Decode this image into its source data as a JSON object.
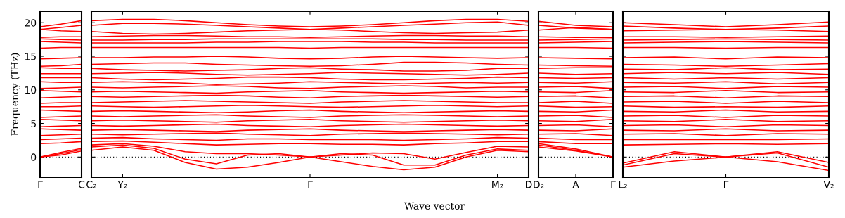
{
  "chart_data": [
    {
      "type": "line",
      "ylabel": "Frequency (THz)",
      "categories": [
        "Γ",
        null,
        "C"
      ],
      "ylim": [
        -3,
        21.7
      ],
      "yticks": [
        0,
        5,
        10,
        15,
        20
      ],
      "ref_lines": [
        {
          "axis": "y",
          "value": 0,
          "color": "#000000",
          "line_style": "dotted"
        }
      ],
      "series": [
        {
          "color": "#ff0000",
          "values": [
            19.4,
            19.8,
            20.3
          ]
        },
        {
          "color": "#ff0000",
          "values": [
            19.0,
            19.3,
            19.6
          ]
        },
        {
          "color": "#ff0000",
          "values": [
            19.0,
            18.8,
            18.7
          ]
        },
        {
          "color": "#ff0000",
          "values": [
            17.8,
            17.9,
            17.9
          ]
        },
        {
          "color": "#ff0000",
          "values": [
            17.6,
            17.5,
            17.4
          ]
        },
        {
          "color": "#ff0000",
          "values": [
            17.2,
            17.1,
            17.0
          ]
        },
        {
          "color": "#ff0000",
          "values": [
            16.2,
            16.3,
            16.3
          ]
        },
        {
          "color": "#ff0000",
          "values": [
            14.6,
            14.7,
            14.8
          ]
        },
        {
          "color": "#ff0000",
          "values": [
            13.5,
            13.6,
            13.8
          ]
        },
        {
          "color": "#ff0000",
          "values": [
            13.3,
            13.2,
            13.2
          ]
        },
        {
          "color": "#ff0000",
          "values": [
            12.4,
            12.4,
            12.4
          ]
        },
        {
          "color": "#ff0000",
          "values": [
            11.8,
            11.8,
            11.8
          ]
        },
        {
          "color": "#ff0000",
          "values": [
            11.2,
            11.1,
            11.1
          ]
        },
        {
          "color": "#ff0000",
          "values": [
            10.2,
            10.3,
            10.4
          ]
        },
        {
          "color": "#ff0000",
          "values": [
            9.9,
            9.8,
            9.7
          ]
        },
        {
          "color": "#ff0000",
          "values": [
            8.8,
            8.9,
            9.0
          ]
        },
        {
          "color": "#ff0000",
          "values": [
            8.0,
            8.1,
            8.1
          ]
        },
        {
          "color": "#ff0000",
          "values": [
            7.5,
            7.5,
            7.6
          ]
        },
        {
          "color": "#ff0000",
          "values": [
            7.0,
            6.9,
            6.8
          ]
        },
        {
          "color": "#ff0000",
          "values": [
            5.9,
            6.0,
            6.1
          ]
        },
        {
          "color": "#ff0000",
          "values": [
            5.6,
            5.5,
            5.4
          ]
        },
        {
          "color": "#ff0000",
          "values": [
            4.5,
            4.6,
            4.7
          ]
        },
        {
          "color": "#ff0000",
          "values": [
            4.2,
            4.1,
            4.0
          ]
        },
        {
          "color": "#ff0000",
          "values": [
            3.2,
            3.3,
            3.4
          ]
        },
        {
          "color": "#ff0000",
          "values": [
            2.6,
            2.7,
            2.8
          ]
        },
        {
          "color": "#ff0000",
          "values": [
            2.0,
            2.1,
            2.3
          ]
        },
        {
          "color": "#ff0000",
          "values": [
            0,
            0.7,
            1.3
          ]
        },
        {
          "color": "#ff0000",
          "values": [
            0,
            0.5,
            1.1
          ]
        },
        {
          "color": "#ff0000",
          "values": [
            0,
            0.3,
            0.9
          ]
        }
      ]
    },
    {
      "type": "line",
      "xlabel": "Wave vector",
      "tick_labels": "x",
      "categories": [
        "C₂",
        "Y₂",
        null,
        null,
        null,
        null,
        null,
        "Γ",
        null,
        null,
        null,
        null,
        null,
        "M₂",
        "D"
      ],
      "ylim": [
        -3,
        21.7
      ],
      "yticks": [
        0,
        5,
        10,
        15,
        20
      ],
      "ref_lines": [
        {
          "axis": "y",
          "value": 0,
          "color": "#000000",
          "line_style": "dotted"
        }
      ],
      "series": [
        {
          "color": "#ff0000",
          "values": [
            20.3,
            20.5,
            20.5,
            20.3,
            20.0,
            19.7,
            19.5,
            19.4,
            19.5,
            19.7,
            20.0,
            20.3,
            20.5,
            20.5,
            20.2
          ]
        },
        {
          "color": "#ff0000",
          "values": [
            19.6,
            19.9,
            19.9,
            19.8,
            19.6,
            19.4,
            19.2,
            19.0,
            19.2,
            19.4,
            19.6,
            19.8,
            20.0,
            20.1,
            19.6
          ]
        },
        {
          "color": "#ff0000",
          "values": [
            18.7,
            18.4,
            18.3,
            18.4,
            18.6,
            18.8,
            18.9,
            19.0,
            18.9,
            18.7,
            18.5,
            18.4,
            18.5,
            18.6,
            18.9
          ]
        },
        {
          "color": "#ff0000",
          "values": [
            17.9,
            18.0,
            18.1,
            18.1,
            18.0,
            17.9,
            17.9,
            17.8,
            17.9,
            18.0,
            18.1,
            18.1,
            18.0,
            18.0,
            17.9
          ]
        },
        {
          "color": "#ff0000",
          "values": [
            17.4,
            17.4,
            17.5,
            17.5,
            17.6,
            17.6,
            17.6,
            17.6,
            17.6,
            17.6,
            17.5,
            17.5,
            17.4,
            17.4,
            17.4
          ]
        },
        {
          "color": "#ff0000",
          "values": [
            17.0,
            17.0,
            17.0,
            17.0,
            17.1,
            17.1,
            17.2,
            17.2,
            17.2,
            17.1,
            17.1,
            17.0,
            17.0,
            17.0,
            17.0
          ]
        },
        {
          "color": "#ff0000",
          "values": [
            16.3,
            16.3,
            16.3,
            16.3,
            16.3,
            16.3,
            16.3,
            16.2,
            16.3,
            16.3,
            16.3,
            16.3,
            16.3,
            16.3,
            16.3
          ]
        },
        {
          "color": "#ff0000",
          "values": [
            14.8,
            14.8,
            14.9,
            14.9,
            15.0,
            14.9,
            14.7,
            14.6,
            14.7,
            14.9,
            15.0,
            14.9,
            14.8,
            14.7,
            14.8
          ]
        },
        {
          "color": "#ff0000",
          "values": [
            13.8,
            13.9,
            14.0,
            14.0,
            13.8,
            13.7,
            13.6,
            13.5,
            13.6,
            13.8,
            14.1,
            14.1,
            14.0,
            13.8,
            13.7
          ]
        },
        {
          "color": "#ff0000",
          "values": [
            13.2,
            13.0,
            12.9,
            12.8,
            12.9,
            13.0,
            13.2,
            13.3,
            13.1,
            13.0,
            12.8,
            12.8,
            12.9,
            13.2,
            13.2
          ]
        },
        {
          "color": "#ff0000",
          "values": [
            12.4,
            12.5,
            12.6,
            12.5,
            12.3,
            12.2,
            12.3,
            12.4,
            12.6,
            12.5,
            12.4,
            12.3,
            12.2,
            12.3,
            12.5
          ]
        },
        {
          "color": "#ff0000",
          "values": [
            11.8,
            11.6,
            11.5,
            11.6,
            11.7,
            11.9,
            11.9,
            11.8,
            11.6,
            11.5,
            11.5,
            11.6,
            11.7,
            11.9,
            11.8
          ]
        },
        {
          "color": "#ff0000",
          "values": [
            11.1,
            11.2,
            11.1,
            11.0,
            10.8,
            10.9,
            11.0,
            11.2,
            11.1,
            11.0,
            10.9,
            11.0,
            11.1,
            11.0,
            11.1
          ]
        },
        {
          "color": "#ff0000",
          "values": [
            10.4,
            10.3,
            10.4,
            10.5,
            10.6,
            10.5,
            10.3,
            10.2,
            10.4,
            10.5,
            10.6,
            10.5,
            10.3,
            10.4,
            10.4
          ]
        },
        {
          "color": "#ff0000",
          "values": [
            9.7,
            9.8,
            9.7,
            9.6,
            9.5,
            9.7,
            9.8,
            9.9,
            9.7,
            9.6,
            9.5,
            9.6,
            9.7,
            9.8,
            9.7
          ]
        },
        {
          "color": "#ff0000",
          "values": [
            9.0,
            8.9,
            9.0,
            9.1,
            9.2,
            9.1,
            8.9,
            8.8,
            9.0,
            9.1,
            9.2,
            9.1,
            9.0,
            8.9,
            9.0
          ]
        },
        {
          "color": "#ff0000",
          "values": [
            8.1,
            8.2,
            8.3,
            8.4,
            8.3,
            8.2,
            8.1,
            8.0,
            8.2,
            8.3,
            8.4,
            8.3,
            8.2,
            8.1,
            8.1
          ]
        },
        {
          "color": "#ff0000",
          "values": [
            7.6,
            7.5,
            7.4,
            7.5,
            7.6,
            7.7,
            7.6,
            7.5,
            7.4,
            7.5,
            7.6,
            7.7,
            7.6,
            7.5,
            7.6
          ]
        },
        {
          "color": "#ff0000",
          "values": [
            6.8,
            6.9,
            6.8,
            6.7,
            6.6,
            6.7,
            6.9,
            7.0,
            6.8,
            6.7,
            6.6,
            6.7,
            6.8,
            6.9,
            6.8
          ]
        },
        {
          "color": "#ff0000",
          "values": [
            6.1,
            6.0,
            6.1,
            6.2,
            6.3,
            6.1,
            6.0,
            5.9,
            6.1,
            6.2,
            6.3,
            6.2,
            6.1,
            6.0,
            6.1
          ]
        },
        {
          "color": "#ff0000",
          "values": [
            5.4,
            5.5,
            5.4,
            5.3,
            5.2,
            5.4,
            5.5,
            5.6,
            5.4,
            5.3,
            5.2,
            5.3,
            5.4,
            5.5,
            5.4
          ]
        },
        {
          "color": "#ff0000",
          "values": [
            4.7,
            4.6,
            4.7,
            4.8,
            4.9,
            4.7,
            4.6,
            4.5,
            4.7,
            4.8,
            4.9,
            4.8,
            4.7,
            4.6,
            4.7
          ]
        },
        {
          "color": "#ff0000",
          "values": [
            4.0,
            4.1,
            4.0,
            3.9,
            3.8,
            4.0,
            4.1,
            4.2,
            4.0,
            3.9,
            3.8,
            3.9,
            4.0,
            4.1,
            4.0
          ]
        },
        {
          "color": "#ff0000",
          "values": [
            3.4,
            3.3,
            3.4,
            3.5,
            3.6,
            3.4,
            3.3,
            3.2,
            3.4,
            3.5,
            3.6,
            3.5,
            3.4,
            3.3,
            3.4
          ]
        },
        {
          "color": "#ff0000",
          "values": [
            2.8,
            2.9,
            2.7,
            2.6,
            2.5,
            2.7,
            2.7,
            2.6,
            2.6,
            2.6,
            2.5,
            2.6,
            2.7,
            2.9,
            2.8
          ]
        },
        {
          "color": "#ff0000",
          "values": [
            2.3,
            2.4,
            2.2,
            2.0,
            1.8,
            1.9,
            2.0,
            2.0,
            1.9,
            1.9,
            1.8,
            2.0,
            2.1,
            2.3,
            2.3
          ]
        },
        {
          "color": "#ff0000",
          "values": [
            1.0,
            1.5,
            1.0,
            -0.8,
            -1.8,
            -1.5,
            -0.8,
            0,
            -0.7,
            -1.4,
            -1.9,
            -1.5,
            0.0,
            1.0,
            0.8
          ]
        },
        {
          "color": "#ff0000",
          "values": [
            1.5,
            1.8,
            1.3,
            -0.3,
            -1.0,
            0.3,
            0.5,
            0,
            0.5,
            0.3,
            -1.2,
            -1.2,
            0.3,
            1.2,
            1.0
          ]
        },
        {
          "color": "#ff0000",
          "values": [
            1.8,
            2.0,
            1.6,
            0.8,
            0.5,
            0.5,
            0.3,
            0,
            0.3,
            0.6,
            0.5,
            -0.3,
            0.7,
            1.6,
            1.5
          ]
        }
      ]
    },
    {
      "type": "line",
      "tick_labels": "x",
      "categories": [
        "D₂",
        "A",
        "Γ"
      ],
      "ylim": [
        -3,
        21.7
      ],
      "yticks": [
        0,
        5,
        10,
        15,
        20
      ],
      "ref_lines": [
        {
          "axis": "y",
          "value": 0,
          "color": "#000000",
          "line_style": "dotted"
        }
      ],
      "series": [
        {
          "color": "#ff0000",
          "values": [
            20.2,
            19.6,
            19.4
          ]
        },
        {
          "color": "#ff0000",
          "values": [
            19.6,
            19.2,
            19.0
          ]
        },
        {
          "color": "#ff0000",
          "values": [
            18.9,
            19.3,
            19.0
          ]
        },
        {
          "color": "#ff0000",
          "values": [
            17.9,
            17.8,
            17.8
          ]
        },
        {
          "color": "#ff0000",
          "values": [
            17.4,
            17.5,
            17.6
          ]
        },
        {
          "color": "#ff0000",
          "values": [
            17.0,
            17.1,
            17.2
          ]
        },
        {
          "color": "#ff0000",
          "values": [
            16.3,
            16.3,
            16.2
          ]
        },
        {
          "color": "#ff0000",
          "values": [
            14.8,
            14.7,
            14.6
          ]
        },
        {
          "color": "#ff0000",
          "values": [
            13.7,
            13.6,
            13.5
          ]
        },
        {
          "color": "#ff0000",
          "values": [
            13.2,
            13.3,
            13.3
          ]
        },
        {
          "color": "#ff0000",
          "values": [
            12.5,
            12.3,
            12.4
          ]
        },
        {
          "color": "#ff0000",
          "values": [
            11.8,
            11.7,
            11.8
          ]
        },
        {
          "color": "#ff0000",
          "values": [
            11.1,
            11.0,
            11.2
          ]
        },
        {
          "color": "#ff0000",
          "values": [
            10.4,
            10.5,
            10.2
          ]
        },
        {
          "color": "#ff0000",
          "values": [
            9.7,
            9.6,
            9.9
          ]
        },
        {
          "color": "#ff0000",
          "values": [
            9.0,
            9.1,
            8.8
          ]
        },
        {
          "color": "#ff0000",
          "values": [
            8.1,
            8.3,
            8.0
          ]
        },
        {
          "color": "#ff0000",
          "values": [
            7.6,
            7.4,
            7.5
          ]
        },
        {
          "color": "#ff0000",
          "values": [
            6.8,
            6.7,
            7.0
          ]
        },
        {
          "color": "#ff0000",
          "values": [
            6.1,
            6.2,
            5.9
          ]
        },
        {
          "color": "#ff0000",
          "values": [
            5.4,
            5.3,
            5.6
          ]
        },
        {
          "color": "#ff0000",
          "values": [
            4.7,
            4.8,
            4.5
          ]
        },
        {
          "color": "#ff0000",
          "values": [
            4.0,
            3.9,
            4.2
          ]
        },
        {
          "color": "#ff0000",
          "values": [
            3.4,
            3.5,
            3.2
          ]
        },
        {
          "color": "#ff0000",
          "values": [
            2.8,
            2.6,
            2.6
          ]
        },
        {
          "color": "#ff0000",
          "values": [
            2.3,
            2.0,
            2.0
          ]
        },
        {
          "color": "#ff0000",
          "values": [
            1.8,
            1.0,
            0
          ]
        },
        {
          "color": "#ff0000",
          "values": [
            1.5,
            0.9,
            0
          ]
        },
        {
          "color": "#ff0000",
          "values": [
            2.0,
            1.2,
            0
          ]
        }
      ]
    },
    {
      "type": "line",
      "tick_labels": "x",
      "categories": [
        "L₂",
        null,
        "Γ",
        null,
        "V₂"
      ],
      "ylim": [
        -3,
        21.7
      ],
      "yticks": [
        0,
        5,
        10,
        15,
        20
      ],
      "ref_lines": [
        {
          "axis": "y",
          "value": 0,
          "color": "#000000",
          "line_style": "dotted"
        }
      ],
      "series": [
        {
          "color": "#ff0000",
          "values": [
            20.0,
            19.7,
            19.4,
            19.7,
            20.1
          ]
        },
        {
          "color": "#ff0000",
          "values": [
            19.5,
            19.2,
            19.0,
            19.2,
            19.5
          ]
        },
        {
          "color": "#ff0000",
          "values": [
            18.8,
            18.9,
            19.0,
            18.9,
            18.7
          ]
        },
        {
          "color": "#ff0000",
          "values": [
            17.9,
            17.9,
            17.8,
            17.9,
            18.0
          ]
        },
        {
          "color": "#ff0000",
          "values": [
            17.4,
            17.5,
            17.6,
            17.5,
            17.4
          ]
        },
        {
          "color": "#ff0000",
          "values": [
            17.0,
            17.1,
            17.2,
            17.1,
            17.0
          ]
        },
        {
          "color": "#ff0000",
          "values": [
            16.3,
            16.3,
            16.2,
            16.3,
            16.3
          ]
        },
        {
          "color": "#ff0000",
          "values": [
            14.8,
            14.9,
            14.6,
            14.9,
            14.8
          ]
        },
        {
          "color": "#ff0000",
          "values": [
            13.8,
            13.7,
            13.5,
            13.7,
            13.9
          ]
        },
        {
          "color": "#ff0000",
          "values": [
            13.1,
            13.0,
            13.3,
            13.0,
            13.1
          ]
        },
        {
          "color": "#ff0000",
          "values": [
            12.4,
            12.6,
            12.4,
            12.6,
            12.3
          ]
        },
        {
          "color": "#ff0000",
          "values": [
            11.8,
            11.6,
            11.8,
            11.6,
            11.8
          ]
        },
        {
          "color": "#ff0000",
          "values": [
            11.1,
            11.0,
            11.2,
            10.9,
            11.1
          ]
        },
        {
          "color": "#ff0000",
          "values": [
            10.4,
            10.5,
            10.2,
            10.5,
            10.4
          ]
        },
        {
          "color": "#ff0000",
          "values": [
            9.7,
            9.6,
            9.9,
            9.6,
            9.7
          ]
        },
        {
          "color": "#ff0000",
          "values": [
            9.0,
            9.1,
            8.8,
            9.1,
            9.0
          ]
        },
        {
          "color": "#ff0000",
          "values": [
            8.2,
            8.3,
            8.0,
            8.3,
            8.1
          ]
        },
        {
          "color": "#ff0000",
          "values": [
            7.6,
            7.4,
            7.5,
            7.4,
            7.6
          ]
        },
        {
          "color": "#ff0000",
          "values": [
            6.8,
            6.7,
            7.0,
            6.7,
            6.8
          ]
        },
        {
          "color": "#ff0000",
          "values": [
            6.1,
            6.2,
            5.9,
            6.2,
            6.1
          ]
        },
        {
          "color": "#ff0000",
          "values": [
            5.4,
            5.3,
            5.6,
            5.3,
            5.4
          ]
        },
        {
          "color": "#ff0000",
          "values": [
            4.7,
            4.8,
            4.5,
            4.8,
            4.7
          ]
        },
        {
          "color": "#ff0000",
          "values": [
            4.0,
            3.9,
            4.2,
            3.9,
            4.0
          ]
        },
        {
          "color": "#ff0000",
          "values": [
            3.4,
            3.5,
            3.2,
            3.5,
            3.4
          ]
        },
        {
          "color": "#ff0000",
          "values": [
            2.6,
            2.6,
            2.6,
            2.6,
            2.7
          ]
        },
        {
          "color": "#ff0000",
          "values": [
            1.8,
            1.9,
            2.0,
            1.9,
            2.0
          ]
        },
        {
          "color": "#ff0000",
          "values": [
            -1.5,
            -0.6,
            0,
            -0.7,
            -2.0
          ]
        },
        {
          "color": "#ff0000",
          "values": [
            -1.2,
            0.5,
            0,
            0.6,
            -1.5
          ]
        },
        {
          "color": "#ff0000",
          "values": [
            -0.9,
            0.8,
            0,
            0.8,
            -0.8
          ]
        }
      ]
    }
  ]
}
